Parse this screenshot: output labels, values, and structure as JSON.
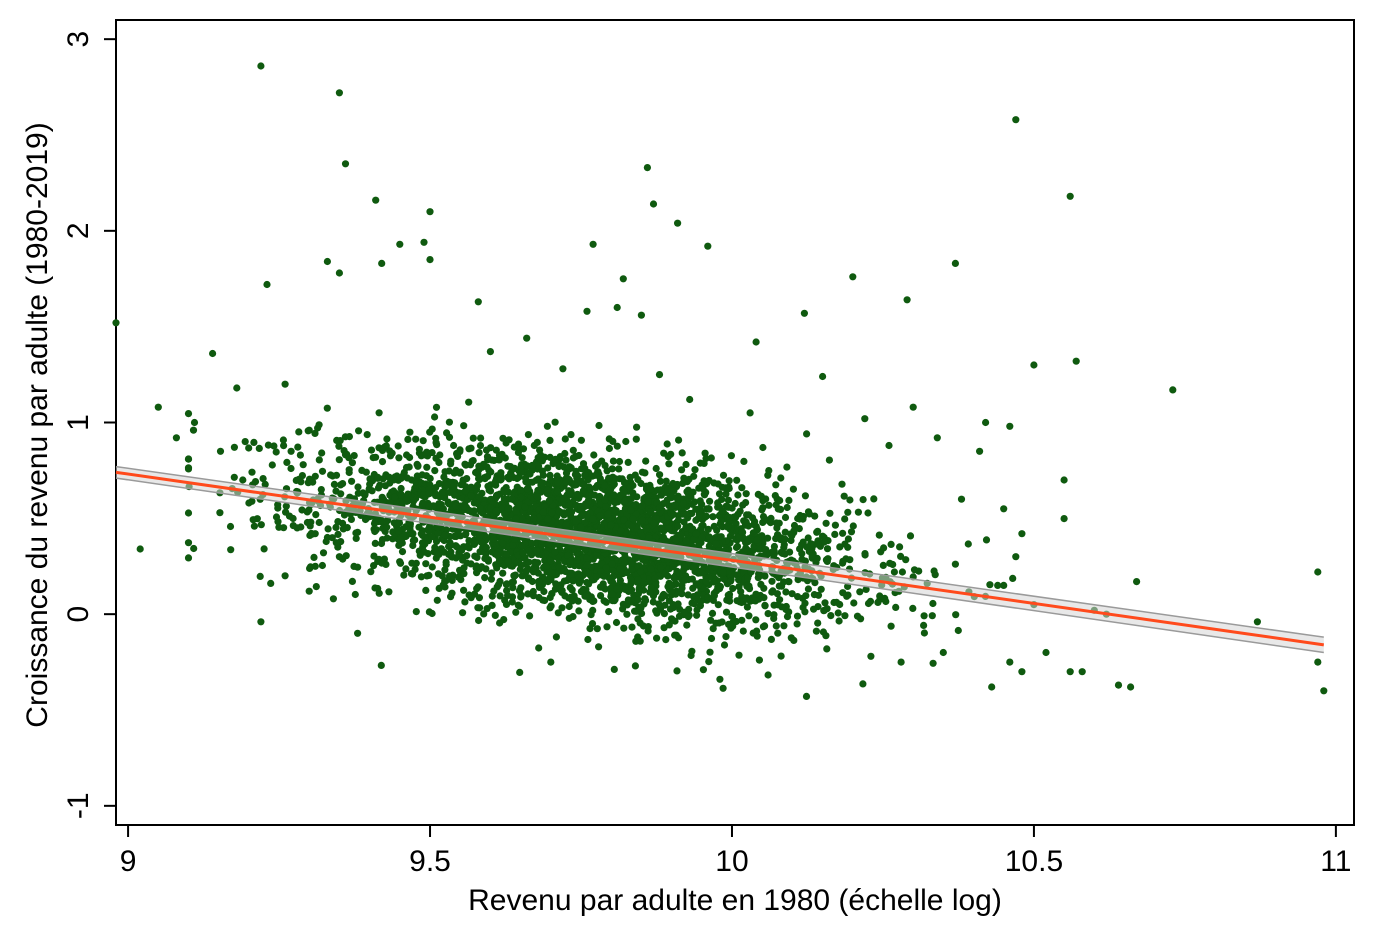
{
  "chart_data": {
    "type": "scatter",
    "title": "",
    "xlabel": "Revenu par adulte en 1980 (échelle log)",
    "ylabel": "Croissance du revenu par adulte (1980-2019)",
    "xlim": [
      8.98,
      11.03
    ],
    "ylim": [
      -1.1,
      3.1
    ],
    "xticks": [
      {
        "value": 9,
        "label": "9"
      },
      {
        "value": 9.5,
        "label": "9.5"
      },
      {
        "value": 10,
        "label": "10"
      },
      {
        "value": 10.5,
        "label": "10.5"
      },
      {
        "value": 11,
        "label": "11"
      }
    ],
    "yticks": [
      {
        "value": -1,
        "label": "-1"
      },
      {
        "value": 0,
        "label": "0"
      },
      {
        "value": 1,
        "label": "1"
      },
      {
        "value": 2,
        "label": "2"
      },
      {
        "value": 3,
        "label": "3"
      }
    ],
    "grid": false,
    "colors": {
      "points": "#0f5a0f",
      "fit_line": "#ff4a1c",
      "confidence_band": "#9a9a9a"
    },
    "series": [
      {
        "kind": "points",
        "points": [
          [
            8.98,
            1.52
          ],
          [
            9.02,
            0.34
          ],
          [
            9.05,
            1.08
          ],
          [
            9.22,
            2.86
          ],
          [
            9.23,
            1.72
          ],
          [
            9.22,
            -0.04
          ],
          [
            9.35,
            2.72
          ],
          [
            9.36,
            2.35
          ],
          [
            9.41,
            2.16
          ],
          [
            9.42,
            1.83
          ],
          [
            9.45,
            1.93
          ],
          [
            9.49,
            1.94
          ],
          [
            9.5,
            2.1
          ],
          [
            9.5,
            1.85
          ],
          [
            9.33,
            1.84
          ],
          [
            9.35,
            1.78
          ],
          [
            9.38,
            -0.1
          ],
          [
            9.86,
            2.33
          ],
          [
            9.87,
            2.14
          ],
          [
            9.91,
            2.04
          ],
          [
            9.77,
            1.93
          ],
          [
            9.96,
            1.92
          ],
          [
            9.82,
            1.75
          ],
          [
            9.81,
            1.6
          ],
          [
            9.58,
            1.63
          ],
          [
            9.76,
            1.58
          ],
          [
            9.85,
            1.56
          ],
          [
            10.04,
            1.42
          ],
          [
            10.12,
            1.57
          ],
          [
            10.2,
            1.76
          ],
          [
            10.29,
            1.64
          ],
          [
            10.37,
            1.83
          ],
          [
            10.47,
            2.58
          ],
          [
            10.56,
            2.18
          ],
          [
            10.5,
            1.3
          ],
          [
            10.57,
            1.32
          ],
          [
            10.73,
            1.17
          ],
          [
            10.15,
            1.24
          ],
          [
            10.42,
            1.0
          ],
          [
            10.46,
            0.98
          ],
          [
            10.55,
            0.7
          ],
          [
            10.6,
            0.02
          ],
          [
            10.62,
            0.0
          ],
          [
            10.64,
            -0.37
          ],
          [
            10.66,
            -0.38
          ],
          [
            10.67,
            0.17
          ],
          [
            10.87,
            -0.04
          ],
          [
            10.97,
            0.22
          ],
          [
            10.98,
            -0.4
          ],
          [
            10.97,
            -0.25
          ],
          [
            10.43,
            -0.38
          ],
          [
            10.48,
            -0.3
          ],
          [
            10.56,
            -0.3
          ],
          [
            10.58,
            -0.3
          ],
          [
            9.7,
            -0.25
          ],
          [
            9.98,
            -0.34
          ],
          [
            9.84,
            -0.27
          ],
          [
            9.14,
            1.36
          ],
          [
            9.11,
            1.0
          ],
          [
            9.08,
            0.92
          ],
          [
            9.18,
            1.18
          ],
          [
            9.26,
            1.2
          ],
          [
            9.3,
            0.96
          ],
          [
            9.27,
            0.85
          ],
          [
            9.19,
            0.7
          ],
          [
            9.2,
            0.58
          ],
          [
            9.26,
            0.2
          ],
          [
            9.3,
            0.12
          ],
          [
            9.34,
            0.08
          ],
          [
            9.32,
            0.65
          ],
          [
            9.35,
            0.3
          ],
          [
            9.28,
            0.45
          ],
          [
            9.31,
            0.25
          ],
          [
            9.33,
            0.4
          ],
          [
            9.29,
            0.78
          ],
          [
            9.6,
            1.37
          ],
          [
            9.66,
            1.44
          ],
          [
            9.72,
            1.28
          ],
          [
            9.88,
            1.25
          ],
          [
            9.93,
            1.12
          ],
          [
            10.03,
            1.05
          ],
          [
            10.22,
            1.02
          ],
          [
            10.3,
            1.08
          ],
          [
            10.34,
            0.92
          ],
          [
            10.26,
            0.88
          ],
          [
            10.38,
            0.6
          ],
          [
            10.41,
            0.85
          ],
          [
            10.45,
            0.55
          ],
          [
            10.48,
            0.42
          ],
          [
            10.47,
            0.3
          ],
          [
            10.44,
            0.15
          ],
          [
            10.52,
            -0.2
          ],
          [
            10.46,
            -0.25
          ],
          [
            10.35,
            -0.2
          ],
          [
            10.28,
            -0.25
          ],
          [
            10.23,
            -0.22
          ],
          [
            10.5,
            0.05
          ],
          [
            10.45,
            0.15
          ]
        ]
      },
      {
        "kind": "cloud",
        "n_points": 3600,
        "x_center": 9.76,
        "x_spread": 0.22,
        "y_at_x9": 0.76,
        "slope": -0.45,
        "y_spread": 0.2
      },
      {
        "kind": "fit_line",
        "points": [
          [
            8.98,
            0.74
          ],
          [
            10.98,
            -0.16
          ]
        ]
      },
      {
        "kind": "confidence_band",
        "upper": [
          [
            8.98,
            0.77
          ],
          [
            10.98,
            -0.12
          ]
        ],
        "lower": [
          [
            8.98,
            0.71
          ],
          [
            10.98,
            -0.2
          ]
        ]
      }
    ]
  }
}
